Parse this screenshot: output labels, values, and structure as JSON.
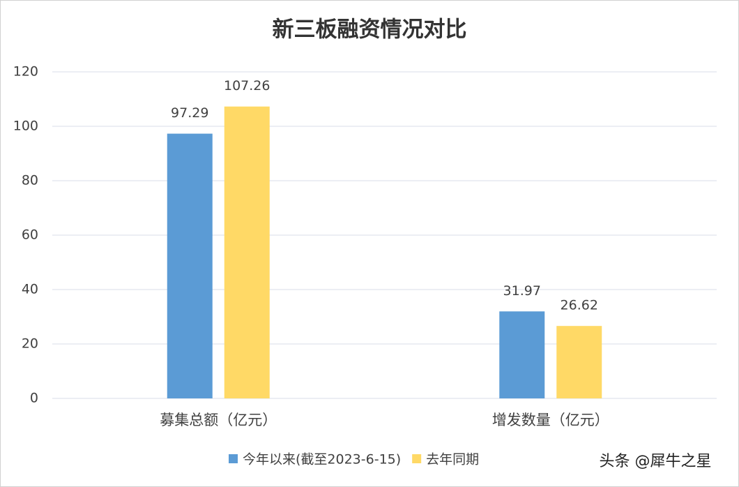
{
  "chart_data": {
    "type": "bar",
    "title": "新三板融资情况对比",
    "categories": [
      "募集总额（亿元）",
      "增发数量（亿元）"
    ],
    "series": [
      {
        "name": "今年以来(截至2023-6-15)",
        "color": "#5b9bd5",
        "values": [
          97.29,
          31.97
        ]
      },
      {
        "name": "去年同期",
        "color": "#ffd966",
        "values": [
          107.26,
          26.62
        ]
      }
    ],
    "ylim": [
      0,
      120
    ],
    "yticks": [
      0,
      20,
      40,
      60,
      80,
      100,
      120
    ],
    "grid": true,
    "legend": "bottom"
  },
  "watermark": "头条 @犀牛之星"
}
